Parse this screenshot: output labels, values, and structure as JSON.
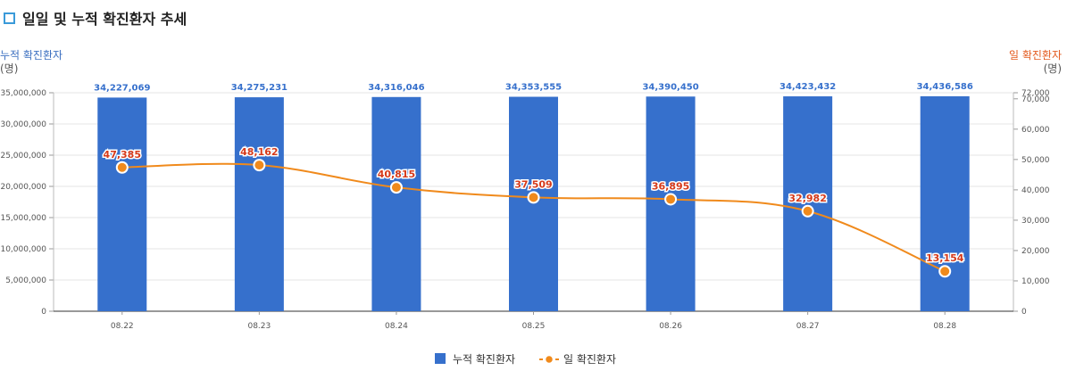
{
  "title": "일일 및 누적 확진환자 추세",
  "colors": {
    "bar": "#3670cc",
    "line": "#f08a1c",
    "label_bar": "#3670cc",
    "label_line": "#d63a1a",
    "title_marker": "#3a9ad9"
  },
  "chart_data": {
    "type": "bar+line",
    "title": "일일 및 누적 확진환자 추세",
    "categories": [
      "08.22",
      "08.23",
      "08.24",
      "08.25",
      "08.26",
      "08.27",
      "08.28"
    ],
    "series": [
      {
        "name": "누적 확진환자",
        "type": "bar",
        "axis": "left",
        "values": [
          34227069,
          34275231,
          34316046,
          34353555,
          34390450,
          34423432,
          34436586
        ],
        "labels": [
          "34,227,069",
          "34,275,231",
          "34,316,046",
          "34,353,555",
          "34,390,450",
          "34,423,432",
          "34,436,586"
        ]
      },
      {
        "name": "일 확진환자",
        "type": "line",
        "axis": "right",
        "values": [
          47385,
          48162,
          40815,
          37509,
          36895,
          32982,
          13154
        ],
        "labels": [
          "47,385",
          "48,162",
          "40,815",
          "37,509",
          "36,895",
          "32,982",
          "13,154"
        ]
      }
    ],
    "y_left": {
      "label": "누적 확진환자",
      "unit": "(명)",
      "ylim": [
        0,
        35000000
      ],
      "ticks": [
        0,
        5000000,
        10000000,
        15000000,
        20000000,
        25000000,
        30000000,
        35000000
      ],
      "tick_labels": [
        "0",
        "5,000,000",
        "10,000,000",
        "15,000,000",
        "20,000,000",
        "25,000,000",
        "30,000,000",
        "35,000,000"
      ]
    },
    "y_right": {
      "label": "일 확진환자",
      "unit": "(명)",
      "ylim": [
        0,
        72000
      ],
      "ticks": [
        0,
        10000,
        20000,
        30000,
        40000,
        50000,
        60000,
        70000,
        72000
      ],
      "tick_labels": [
        "0",
        "10,000",
        "20,000",
        "30,000",
        "40,000",
        "50,000",
        "60,000",
        "70,000",
        "72,000"
      ]
    },
    "legend": [
      {
        "name": "누적 확진환자",
        "marker": "square"
      },
      {
        "name": "일 확진환자",
        "marker": "line-dot"
      }
    ],
    "legend_position": "bottom-center",
    "grid": true
  }
}
